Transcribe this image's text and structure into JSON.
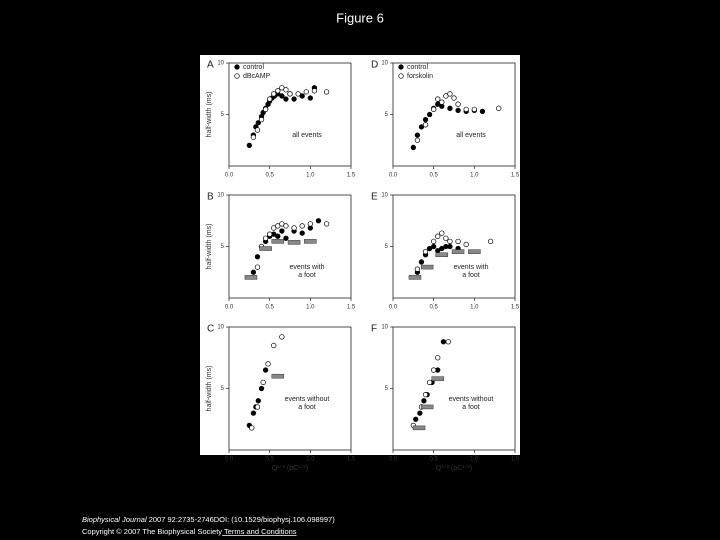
{
  "title": "Figure 6",
  "chart_data": [
    {
      "type": "scatter",
      "panel": "A",
      "ylabel": "half-width (ms)",
      "annotation": [
        "all events"
      ],
      "xlim": [
        0,
        1.5
      ],
      "ylim": [
        0,
        10
      ],
      "xticks": [
        {
          "value": 0,
          "label": "0.0"
        },
        0.5,
        {
          "value": 1,
          "label": "1.0"
        },
        1.5
      ],
      "yticks": [
        5,
        10
      ],
      "series": [
        {
          "name": "control",
          "marker": "filled",
          "color": "#000000",
          "x": [
            0.25,
            0.3,
            0.33,
            0.36,
            0.4,
            0.42,
            0.45,
            0.48,
            0.5,
            0.53,
            0.56,
            0.6,
            0.65,
            0.7,
            0.75,
            0.8,
            0.9,
            1.0,
            1.05
          ],
          "values": [
            2,
            3,
            3.8,
            4.2,
            4.8,
            5.2,
            5.6,
            6,
            6.3,
            6.6,
            6.8,
            7,
            6.8,
            6.5,
            7,
            6.5,
            6.8,
            6.6,
            7.6
          ]
        },
        {
          "name": "dBcAMP",
          "marker": "open",
          "color": "#ffffff",
          "x": [
            0.3,
            0.35,
            0.4,
            0.45,
            0.5,
            0.55,
            0.6,
            0.65,
            0.7,
            0.75,
            0.85,
            0.95,
            1.05,
            1.2
          ],
          "values": [
            2.8,
            3.5,
            4.5,
            5.5,
            6.5,
            7,
            7.3,
            7.6,
            7.4,
            7,
            7,
            7.2,
            7.3,
            7.2
          ]
        }
      ]
    },
    {
      "type": "scatter",
      "panel": "B",
      "ylabel": "half-width (ms)",
      "annotation": [
        "events with",
        "a foot"
      ],
      "xlim": [
        0,
        1.5
      ],
      "ylim": [
        0,
        10
      ],
      "xticks": [
        {
          "value": 0,
          "label": "0.0"
        },
        0.5,
        {
          "value": 1,
          "label": "1.0"
        },
        1.5
      ],
      "yticks": [
        5,
        10
      ],
      "series": [
        {
          "marker": "filled",
          "color": "#000000",
          "x": [
            0.3,
            0.35,
            0.4,
            0.45,
            0.5,
            0.55,
            0.6,
            0.65,
            0.7,
            0.8,
            0.9,
            1.0,
            1.1
          ],
          "values": [
            2.5,
            4,
            5,
            5.5,
            6,
            6.2,
            6,
            6.5,
            5.8,
            6.5,
            6.3,
            6.8,
            7.5
          ]
        },
        {
          "marker": "open",
          "color": "#ffffff",
          "x": [
            0.35,
            0.4,
            0.45,
            0.5,
            0.55,
            0.6,
            0.65,
            0.7,
            0.8,
            0.9,
            1.0,
            1.2
          ],
          "values": [
            3,
            5,
            5.8,
            6.2,
            6.8,
            7,
            7.2,
            7,
            6.8,
            7,
            7.2,
            7.2
          ]
        },
        {
          "marker": "bar",
          "color": "#888888",
          "x": [
            0.27,
            0.45,
            0.6,
            0.8,
            1.0
          ],
          "values": [
            2,
            4.8,
            5.5,
            5.4,
            5.5
          ]
        }
      ]
    },
    {
      "type": "scatter",
      "panel": "C",
      "ylabel": "half-width (ms)",
      "xlabel": "Q¹ᐟ² (pC¹ᐟ²)",
      "annotation": [
        "events without",
        "a foot"
      ],
      "xlim": [
        0,
        1.5
      ],
      "ylim": [
        0,
        10
      ],
      "xticks": [
        {
          "value": 0,
          "label": "0.0"
        },
        0.5,
        {
          "value": 1,
          "label": "1.0"
        },
        1.5
      ],
      "yticks": [
        5,
        10
      ],
      "series": [
        {
          "marker": "filled",
          "color": "#000000",
          "x": [
            0.25,
            0.3,
            0.33,
            0.36,
            0.4,
            0.45
          ],
          "values": [
            2,
            3,
            3.5,
            4,
            5,
            6.5
          ]
        },
        {
          "marker": "open",
          "color": "#ffffff",
          "x": [
            0.28,
            0.35,
            0.42,
            0.48,
            0.55,
            0.65
          ],
          "values": [
            1.8,
            3.5,
            5.5,
            7,
            8.5,
            9.2
          ]
        },
        {
          "marker": "bar",
          "color": "#888888",
          "x": [
            0.6
          ],
          "values": [
            6
          ]
        }
      ]
    },
    {
      "type": "scatter",
      "panel": "D",
      "annotation": [
        "all events"
      ],
      "xlim": [
        0,
        1.5
      ],
      "ylim": [
        0,
        10
      ],
      "xticks": [
        {
          "value": 0,
          "label": "0.0"
        },
        0.5,
        {
          "value": 1,
          "label": "1.0"
        },
        1.5
      ],
      "yticks": [
        5,
        10
      ],
      "series": [
        {
          "name": "control",
          "marker": "filled",
          "color": "#000000",
          "x": [
            0.25,
            0.3,
            0.35,
            0.4,
            0.45,
            0.5,
            0.55,
            0.6,
            0.7,
            0.8,
            0.9,
            1.0,
            1.1
          ],
          "values": [
            1.8,
            3,
            3.8,
            4.5,
            5,
            5.6,
            6,
            5.8,
            5.6,
            5.4,
            5.3,
            5.4,
            5.3
          ]
        },
        {
          "name": "forskolin",
          "marker": "open",
          "color": "#ffffff",
          "x": [
            0.3,
            0.4,
            0.5,
            0.55,
            0.6,
            0.65,
            0.7,
            0.75,
            0.8,
            0.9,
            1.0,
            1.3
          ],
          "values": [
            2.5,
            4,
            5.5,
            6.5,
            6.2,
            6.8,
            7,
            6.6,
            6,
            5.5,
            5.5,
            5.6
          ]
        }
      ]
    },
    {
      "type": "scatter",
      "panel": "E",
      "annotation": [
        "events with",
        "a foot"
      ],
      "xlim": [
        0,
        1.5
      ],
      "ylim": [
        0,
        10
      ],
      "xticks": [
        {
          "value": 0,
          "label": "0.0"
        },
        0.5,
        {
          "value": 1,
          "label": "1.0"
        },
        1.5
      ],
      "yticks": [
        5,
        10
      ],
      "series": [
        {
          "marker": "filled",
          "color": "#000000",
          "x": [
            0.3,
            0.35,
            0.4,
            0.45,
            0.5,
            0.55,
            0.6,
            0.65,
            0.7,
            0.8
          ],
          "values": [
            2.5,
            3.5,
            4.2,
            4.8,
            5,
            4.6,
            4.8,
            5,
            5,
            4.8
          ]
        },
        {
          "marker": "open",
          "color": "#ffffff",
          "x": [
            0.3,
            0.4,
            0.5,
            0.55,
            0.6,
            0.65,
            0.7,
            0.8,
            0.9,
            1.2
          ],
          "values": [
            2.8,
            4.5,
            5.5,
            6,
            6.3,
            5.8,
            5.5,
            5.5,
            5.2,
            5.5
          ]
        },
        {
          "marker": "bar",
          "color": "#888888",
          "x": [
            0.27,
            0.42,
            0.6,
            0.8,
            1.0
          ],
          "values": [
            2,
            3,
            4.2,
            4.5,
            4.5
          ]
        }
      ]
    },
    {
      "type": "scatter",
      "panel": "F",
      "xlabel": "Q¹ᐟ² (pC¹ᐟ²)",
      "annotation": [
        "events without",
        "a foot"
      ],
      "xlim": [
        0,
        1.5
      ],
      "ylim": [
        0,
        10
      ],
      "xticks": [
        {
          "value": 0,
          "label": "0.0"
        },
        0.5,
        {
          "value": 1,
          "label": "1.0"
        },
        1.5
      ],
      "yticks": [
        5,
        10
      ],
      "series": [
        {
          "marker": "filled",
          "color": "#000000",
          "x": [
            0.28,
            0.33,
            0.38,
            0.42,
            0.48,
            0.55,
            0.62
          ],
          "values": [
            2.5,
            3,
            4,
            4.5,
            5.5,
            6.5,
            8.8
          ]
        },
        {
          "marker": "open",
          "color": "#ffffff",
          "x": [
            0.25,
            0.35,
            0.4,
            0.45,
            0.5,
            0.55,
            0.68
          ],
          "values": [
            2,
            3.5,
            4.5,
            5.5,
            6.5,
            7.5,
            8.8
          ]
        },
        {
          "marker": "bar",
          "color": "#888888",
          "x": [
            0.32,
            0.42,
            0.55
          ],
          "values": [
            1.8,
            3.5,
            5.8
          ]
        }
      ]
    }
  ],
  "caption": {
    "journal": "Biophysical Journal",
    "citation": " 2007 92:2735-2746DOI: (10.1529/biophysj.106.098997)",
    "copyright": "Copyright © 2007 The Biophysical Society",
    "link": " Terms and Conditions"
  }
}
